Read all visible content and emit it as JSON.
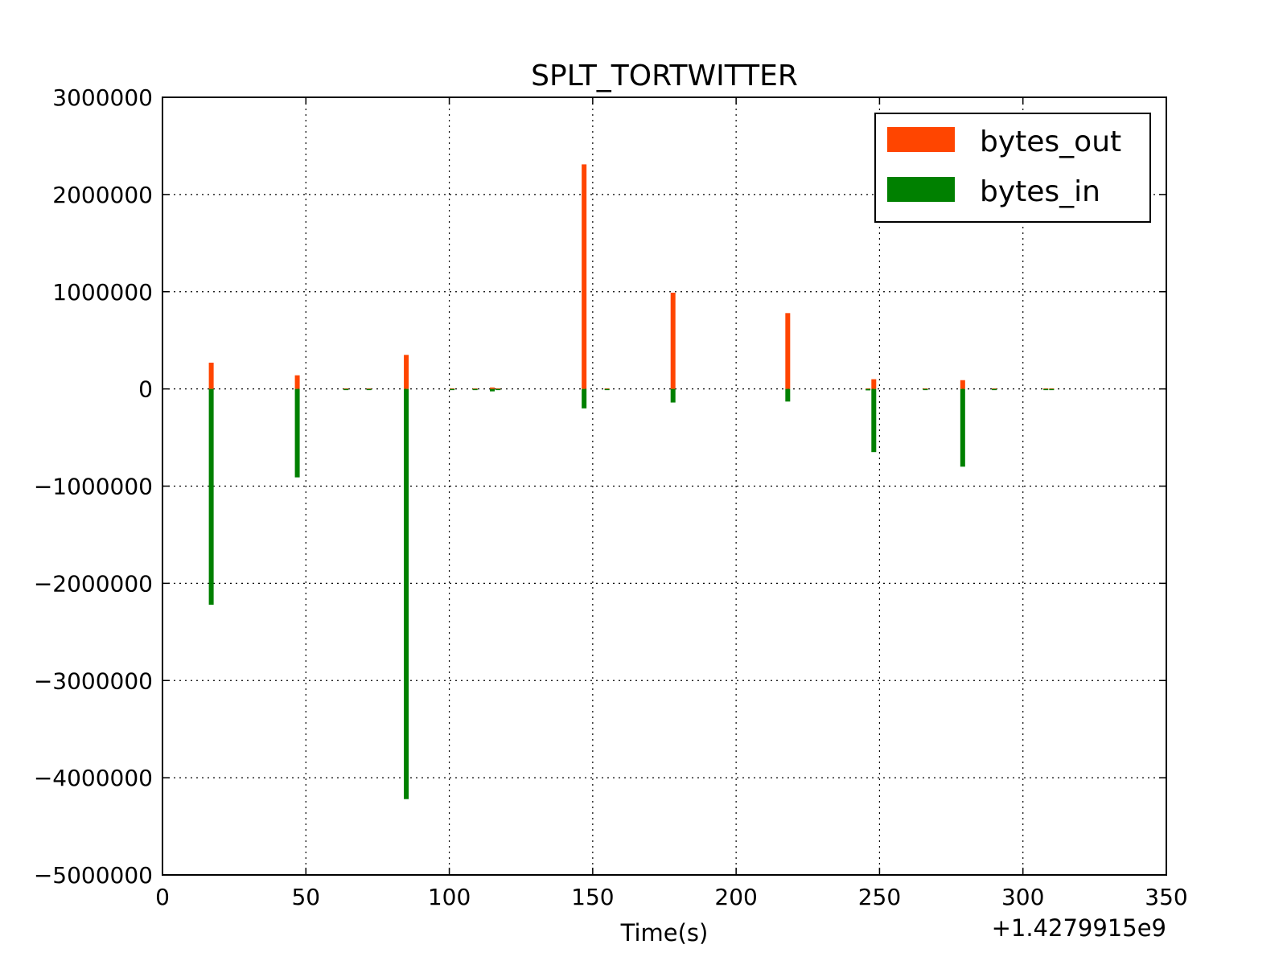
{
  "chart_data": {
    "type": "bar",
    "title": "SPLT_TORTWITTER",
    "xlabel": "Time(s)",
    "ylabel": "",
    "x_offset_label": "+1.4279915e9",
    "xlim": [
      0,
      350
    ],
    "ylim": [
      -5000000,
      3000000
    ],
    "xticks": [
      0,
      50,
      100,
      150,
      200,
      250,
      300,
      350
    ],
    "xtick_labels": [
      "0",
      "50",
      "100",
      "150",
      "200",
      "250",
      "300",
      "350"
    ],
    "yticks": [
      3000000,
      2000000,
      1000000,
      0,
      -1000000,
      -2000000,
      -3000000,
      -4000000,
      -5000000
    ],
    "ytick_labels": [
      "3000000",
      "2000000",
      "1000000",
      "0",
      "−1000000",
      "−2000000",
      "−3000000",
      "−4000000",
      "−5000000"
    ],
    "grid": true,
    "legend_position": "top-right",
    "series": [
      {
        "name": "bytes_out",
        "color": "#ff4500",
        "x": [
          17,
          47,
          64,
          72,
          85,
          101,
          109,
          115,
          117,
          147,
          155,
          178,
          218,
          246,
          248,
          266,
          279,
          290,
          308,
          310
        ],
        "values": [
          270000,
          140000,
          5000,
          5000,
          350000,
          5000,
          5000,
          15000,
          5000,
          2310000,
          5000,
          990000,
          780000,
          5000,
          100000,
          5000,
          90000,
          5000,
          5000,
          5000
        ]
      },
      {
        "name": "bytes_in",
        "color": "#008000",
        "x": [
          17,
          47,
          64,
          72,
          85,
          101,
          109,
          115,
          117,
          147,
          155,
          178,
          218,
          246,
          248,
          266,
          279,
          290,
          308,
          310
        ],
        "values": [
          -2220000,
          -910000,
          -5000,
          -5000,
          -4220000,
          -5000,
          -5000,
          -25000,
          -10000,
          -200000,
          -10000,
          -140000,
          -130000,
          -15000,
          -650000,
          -10000,
          -800000,
          -10000,
          -10000,
          -10000
        ]
      }
    ]
  }
}
